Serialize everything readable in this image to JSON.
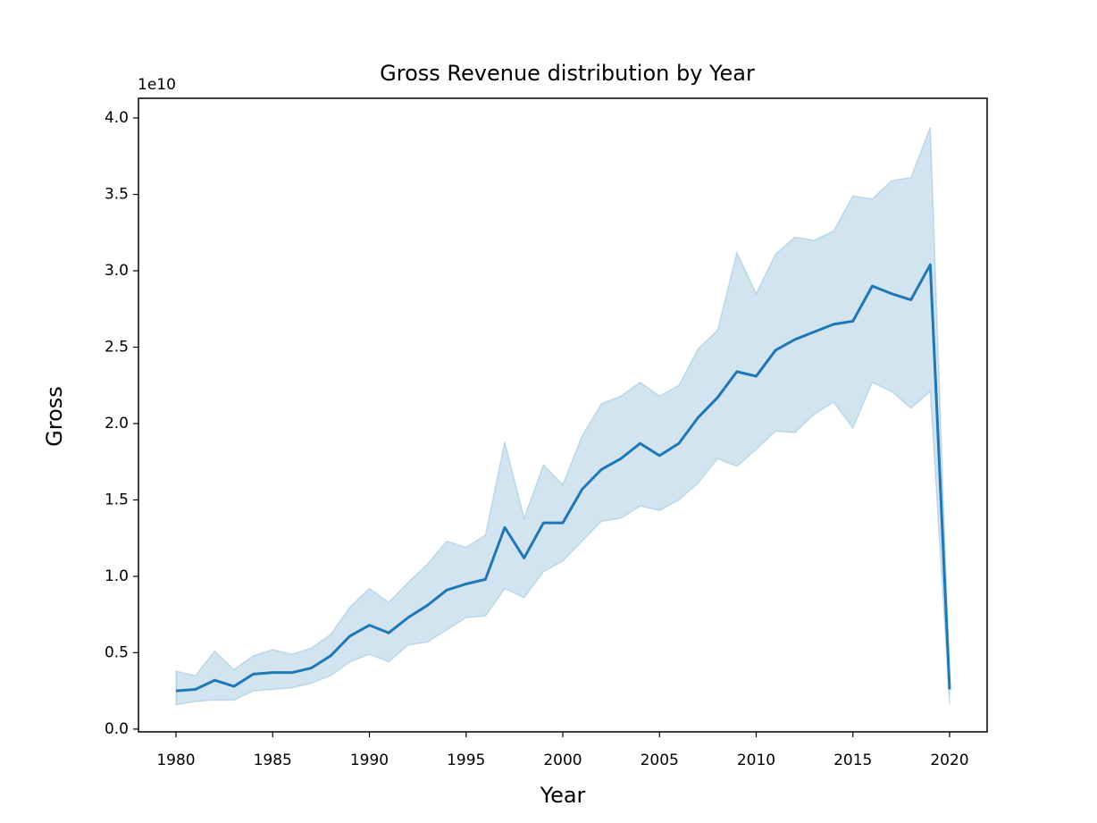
{
  "chart_data": {
    "type": "line",
    "title": "Gross Revenue distribution by Year",
    "x_label": "Year",
    "y_label": "Gross",
    "y_offset_label": "1e10",
    "x": [
      1980,
      1981,
      1982,
      1983,
      1984,
      1985,
      1986,
      1987,
      1988,
      1989,
      1990,
      1991,
      1992,
      1993,
      1994,
      1995,
      1996,
      1997,
      1998,
      1999,
      2000,
      2001,
      2002,
      2003,
      2004,
      2005,
      2006,
      2007,
      2008,
      2009,
      2010,
      2011,
      2012,
      2013,
      2014,
      2015,
      2016,
      2017,
      2018,
      2019,
      2020
    ],
    "series": [
      {
        "color": "#1f77b4",
        "band_color": "#1f77b4",
        "values": [
          0.25,
          0.26,
          0.32,
          0.28,
          0.36,
          0.37,
          0.37,
          0.4,
          0.48,
          0.61,
          0.68,
          0.63,
          0.73,
          0.81,
          0.91,
          0.95,
          0.98,
          1.32,
          1.12,
          1.35,
          1.35,
          1.57,
          1.7,
          1.77,
          1.87,
          1.79,
          1.87,
          2.04,
          2.17,
          2.34,
          2.31,
          2.48,
          2.55,
          2.6,
          2.65,
          2.67,
          2.9,
          2.85,
          2.81,
          3.04,
          0.26
        ],
        "upper": [
          0.38,
          0.35,
          0.51,
          0.39,
          0.48,
          0.52,
          0.49,
          0.53,
          0.62,
          0.8,
          0.92,
          0.83,
          0.96,
          1.08,
          1.23,
          1.19,
          1.27,
          1.88,
          1.38,
          1.73,
          1.6,
          1.92,
          2.13,
          2.18,
          2.27,
          2.18,
          2.25,
          2.49,
          2.61,
          3.12,
          2.85,
          3.11,
          3.22,
          3.2,
          3.26,
          3.49,
          3.47,
          3.59,
          3.61,
          3.94,
          0.34
        ],
        "lower": [
          0.16,
          0.18,
          0.19,
          0.19,
          0.25,
          0.26,
          0.27,
          0.3,
          0.35,
          0.44,
          0.49,
          0.44,
          0.55,
          0.57,
          0.65,
          0.73,
          0.74,
          0.92,
          0.86,
          1.03,
          1.1,
          1.23,
          1.36,
          1.38,
          1.46,
          1.43,
          1.5,
          1.61,
          1.77,
          1.72,
          1.83,
          1.95,
          1.94,
          2.06,
          2.14,
          1.97,
          2.27,
          2.21,
          2.1,
          2.21,
          0.16
        ]
      }
    ],
    "xlim": [
      1978.06,
      2021.94
    ],
    "ylim": [
      -0.018,
      4.129
    ],
    "xticks": [
      1980,
      1985,
      1990,
      1995,
      2000,
      2005,
      2010,
      2015,
      2020
    ],
    "yticks": [
      {
        "value": 0,
        "label": "0.0"
      },
      0.5,
      {
        "value": 1,
        "label": "1.0"
      },
      1.5,
      {
        "value": 2,
        "label": "2.0"
      },
      2.5,
      {
        "value": 3,
        "label": "3.0"
      },
      3.5,
      {
        "value": 4,
        "label": "4.0"
      }
    ],
    "grid": false
  }
}
